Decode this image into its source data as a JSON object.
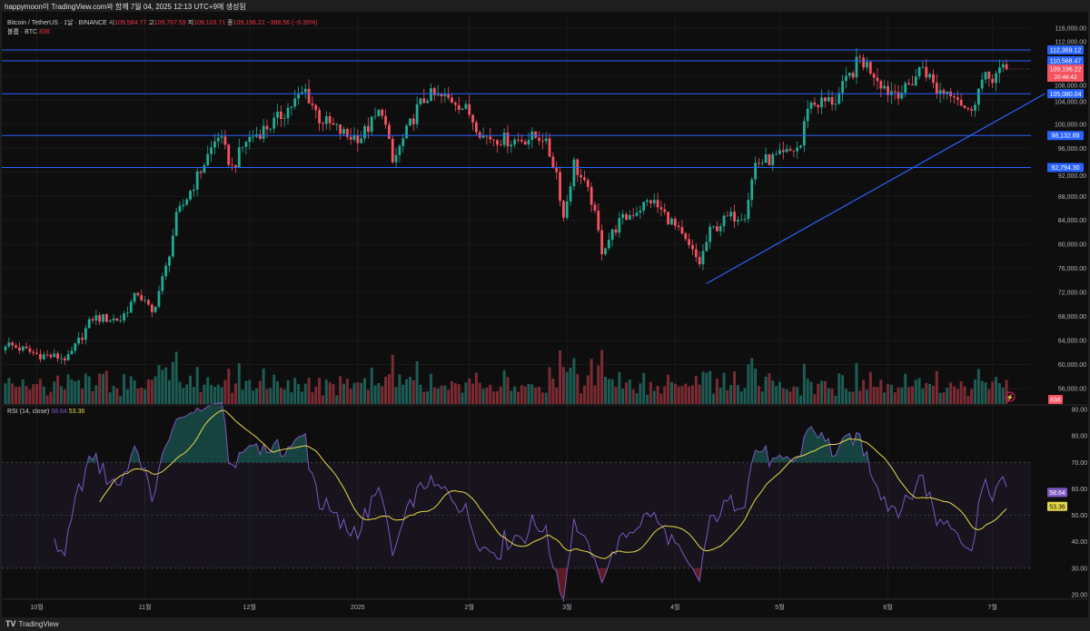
{
  "header": {
    "caption": "happymoon이 TradingView.com와 함께 7월 04, 2025 12:13 UTC+9에 생성됨"
  },
  "legend": {
    "symbol": "Bitcoin / TetherUS · 1날 · BINANCE",
    "open_label": "시",
    "open": "109,584.77",
    "high_label": "고",
    "high": "109,767.59",
    "low_label": "저",
    "low": "109,103.71",
    "close_label": "종",
    "close": "109,196.22",
    "change": "−388.56 (−0.35%)",
    "volume_label": "볼륨 · BTC",
    "volume": "838"
  },
  "rsi_legend": {
    "label": "RSI (14, close)",
    "rsi": "58.64",
    "ma": "53.36"
  },
  "footer": {
    "brand": "TradingView",
    "logo": "TV"
  },
  "colors": {
    "up": "#22ab94",
    "down": "#f7525f",
    "level": "#2962ff",
    "rsi": "#7e57c2",
    "rsi_ma": "#e8d94a",
    "vol_up": "#1d5c54",
    "vol_down": "#7c2b33"
  },
  "chart_data": [
    {
      "type": "candlestick",
      "title": "Bitcoin / TetherUS 1D",
      "ylim": [
        54000,
        118000
      ],
      "y_ticks": [
        "116,000.00",
        "112,000.00",
        "108,000.00",
        "104,000.00",
        "100,000.00",
        "96,000.00",
        "92,000.00",
        "88,000.00",
        "84,000.00",
        "80,000.00",
        "76,000.00",
        "72,000.00",
        "68,000.00",
        "64,000.00",
        "60,000.00",
        "56,000.00"
      ],
      "y_tick_values": [
        116000,
        112000,
        108000,
        104000,
        100000,
        96000,
        92000,
        88000,
        84000,
        80000,
        76000,
        72000,
        68000,
        64000,
        60000,
        56000
      ],
      "x_ticks": [
        {
          "label": "10월",
          "day": 9
        },
        {
          "label": "11월",
          "day": 40
        },
        {
          "label": "12월",
          "day": 70
        },
        {
          "label": "2025",
          "day": 101
        },
        {
          "label": "2월",
          "day": 133
        },
        {
          "label": "3월",
          "day": 161
        },
        {
          "label": "4월",
          "day": 192
        },
        {
          "label": "5월",
          "day": 222
        },
        {
          "label": "6월",
          "day": 253
        },
        {
          "label": "7월",
          "day": 283
        }
      ],
      "days": 288,
      "close_keypoints": [
        [
          0,
          63500
        ],
        [
          9,
          61700
        ],
        [
          18,
          61000
        ],
        [
          25,
          67800
        ],
        [
          33,
          67500
        ],
        [
          38,
          72000
        ],
        [
          42,
          68500
        ],
        [
          46,
          76000
        ],
        [
          49,
          84400
        ],
        [
          55,
          91200
        ],
        [
          61,
          98300
        ],
        [
          65,
          92700
        ],
        [
          69,
          97300
        ],
        [
          77,
          100300
        ],
        [
          86,
          105600
        ],
        [
          90,
          101000
        ],
        [
          98,
          98000
        ],
        [
          102,
          98000
        ],
        [
          108,
          102500
        ],
        [
          111,
          93500
        ],
        [
          118,
          102500
        ],
        [
          121,
          104800
        ],
        [
          129,
          104000
        ],
        [
          133,
          101800
        ],
        [
          137,
          98000
        ],
        [
          145,
          97300
        ],
        [
          154,
          98000
        ],
        [
          158,
          92000
        ],
        [
          160,
          84400
        ],
        [
          163,
          93500
        ],
        [
          168,
          87400
        ],
        [
          171,
          79100
        ],
        [
          176,
          83700
        ],
        [
          185,
          87400
        ],
        [
          191,
          83700
        ],
        [
          199,
          76900
        ],
        [
          202,
          82100
        ],
        [
          207,
          84400
        ],
        [
          212,
          85200
        ],
        [
          215,
          93500
        ],
        [
          223,
          94700
        ],
        [
          228,
          96500
        ],
        [
          230,
          103300
        ],
        [
          238,
          104000
        ],
        [
          245,
          110900
        ],
        [
          249,
          108600
        ],
        [
          253,
          105600
        ],
        [
          258,
          105600
        ],
        [
          263,
          109800
        ],
        [
          267,
          105600
        ],
        [
          272,
          105600
        ],
        [
          276,
          101800
        ],
        [
          280,
          107100
        ],
        [
          285,
          108600
        ],
        [
          287,
          109196.22
        ]
      ],
      "horizontal_levels": [
        {
          "value": 112369.12,
          "label": "112,369.12"
        },
        {
          "value": 110568.47,
          "label": "110,568.47"
        },
        {
          "value": 105080.04,
          "label": "105,080.04"
        },
        {
          "value": 98132.89,
          "label": "98,132.89"
        },
        {
          "value": 92794.3,
          "label": "92,794.30"
        }
      ],
      "trendline": [
        [
          201,
          73500
        ],
        [
          298,
          105080
        ]
      ],
      "last_price": {
        "value": 109196.22,
        "label": "109,196.22",
        "countdown": "20:46:42"
      },
      "volume_last": {
        "label": "838"
      }
    },
    {
      "type": "line",
      "title": "RSI (14, close)",
      "ylim": [
        17,
        92
      ],
      "y_ticks": [
        "90.00",
        "80.00",
        "70.00",
        "60.00",
        "50.00",
        "40.00",
        "30.00",
        "20.00"
      ],
      "y_tick_values": [
        90,
        80,
        70,
        60,
        50,
        40,
        30,
        20
      ],
      "bands": [
        70,
        50,
        30
      ],
      "series": [
        {
          "name": "RSI",
          "last": "58.64"
        },
        {
          "name": "RSI-based MA",
          "last": "53.36"
        }
      ]
    }
  ]
}
